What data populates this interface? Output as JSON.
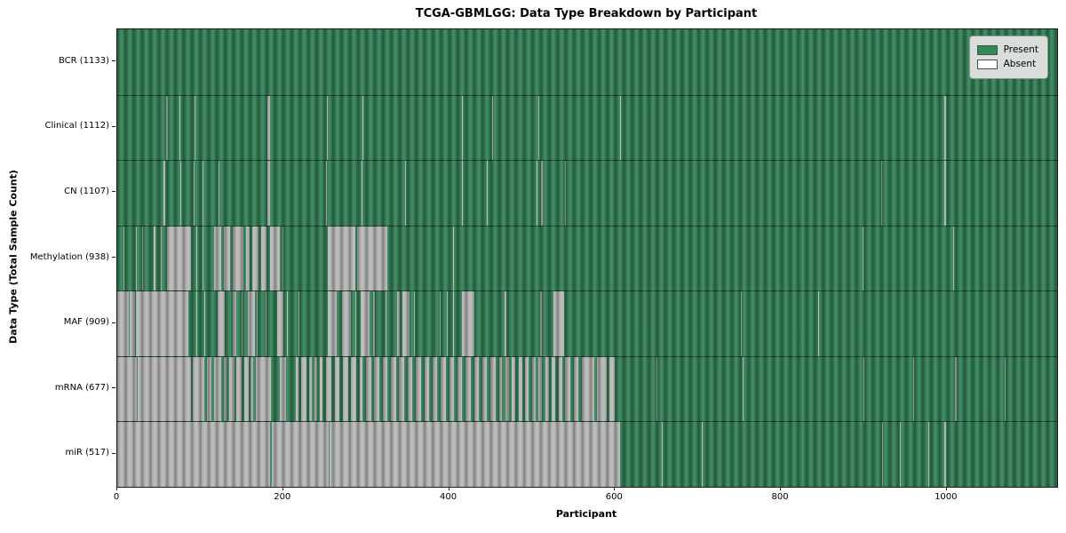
{
  "title": "TCGA-GBMLGG: Data Type Breakdown by Participant",
  "axes": {
    "xlabel": "Participant",
    "ylabel": "Data Type (Total Sample Count)"
  },
  "legend": {
    "items": [
      {
        "label": "Present",
        "color": "#2e8b57"
      },
      {
        "label": "Absent",
        "color": "#ffffff"
      }
    ]
  },
  "colors": {
    "present_fill": "#2e8b57",
    "absent_fill": "#ffffff",
    "bar_edge": "#1c1c1c",
    "plot_border": "#1a1a1a",
    "legend_bg": "#dadedb"
  },
  "chart_data": {
    "type": "heatmap",
    "title": "TCGA-GBMLGG: Data Type Breakdown by Participant",
    "xlabel": "Participant",
    "ylabel": "Data Type (Total Sample Count)",
    "x_range": [
      0,
      1133
    ],
    "x_ticks": [
      0,
      200,
      400,
      600,
      800,
      1000
    ],
    "legend": [
      "Present",
      "Absent"
    ],
    "legend_position": "upper right",
    "cell_states": {
      "present": "#2e8b57 green",
      "absent": "white with gray bar edges"
    },
    "n_participants": 1133,
    "rows": [
      {
        "label": "BCR (1133)",
        "data_type": "BCR",
        "total_samples": 1133,
        "absent_segments": []
      },
      {
        "label": "Clinical (1112)",
        "data_type": "Clinical",
        "total_samples": 1112,
        "absent_segments": [
          [
            59,
            61
          ],
          [
            75,
            76
          ],
          [
            93,
            94
          ],
          [
            181,
            184
          ],
          [
            253,
            254
          ],
          [
            296,
            297
          ],
          [
            415,
            416
          ],
          [
            452,
            453
          ],
          [
            508,
            509
          ],
          [
            606,
            607
          ],
          [
            997,
            999
          ]
        ]
      },
      {
        "label": "CN (1107)",
        "data_type": "CN",
        "total_samples": 1107,
        "absent_segments": [
          [
            56,
            58
          ],
          [
            76,
            77
          ],
          [
            92,
            93
          ],
          [
            103,
            104
          ],
          [
            122,
            123
          ],
          [
            181,
            184
          ],
          [
            252,
            253
          ],
          [
            295,
            296
          ],
          [
            347,
            348
          ],
          [
            416,
            417
          ],
          [
            445,
            446
          ],
          [
            505,
            506
          ],
          [
            511,
            513
          ],
          [
            540,
            541
          ],
          [
            921,
            922
          ],
          [
            997,
            999
          ]
        ]
      },
      {
        "label": "Methylation (938)",
        "data_type": "Methylation",
        "total_samples": 938,
        "absent_segments": [
          [
            8,
            9
          ],
          [
            22,
            23
          ],
          [
            30,
            31
          ],
          [
            44,
            46
          ],
          [
            52,
            53
          ],
          [
            60,
            89
          ],
          [
            95,
            96
          ],
          [
            103,
            104
          ],
          [
            117,
            125
          ],
          [
            128,
            136
          ],
          [
            139,
            152
          ],
          [
            155,
            160
          ],
          [
            163,
            170
          ],
          [
            173,
            180
          ],
          [
            184,
            196
          ],
          [
            199,
            200
          ],
          [
            254,
            287
          ],
          [
            289,
            326
          ],
          [
            405,
            406
          ],
          [
            898,
            900
          ],
          [
            1008,
            1009
          ]
        ]
      },
      {
        "label": "MAF (909)",
        "data_type": "MAF",
        "total_samples": 909,
        "absent_segments": [
          [
            0,
            14
          ],
          [
            15,
            21
          ],
          [
            23,
            86
          ],
          [
            95,
            96
          ],
          [
            105,
            106
          ],
          [
            121,
            130
          ],
          [
            139,
            143
          ],
          [
            150,
            151
          ],
          [
            157,
            166
          ],
          [
            168,
            169
          ],
          [
            179,
            180
          ],
          [
            193,
            200
          ],
          [
            205,
            206
          ],
          [
            218,
            219
          ],
          [
            254,
            264
          ],
          [
            271,
            282
          ],
          [
            287,
            288
          ],
          [
            293,
            304
          ],
          [
            308,
            311
          ],
          [
            323,
            324
          ],
          [
            337,
            341
          ],
          [
            344,
            352
          ],
          [
            358,
            359
          ],
          [
            389,
            390
          ],
          [
            397,
            398
          ],
          [
            405,
            406
          ],
          [
            416,
            430
          ],
          [
            467,
            469
          ],
          [
            510,
            512
          ],
          [
            526,
            539
          ],
          [
            752,
            753
          ],
          [
            845,
            846
          ]
        ]
      },
      {
        "label": "mRNA (677)",
        "data_type": "mRNA",
        "total_samples": 677,
        "absent_segments": [
          [
            0,
            24
          ],
          [
            25,
            89
          ],
          [
            91,
            105
          ],
          [
            108,
            113
          ],
          [
            117,
            125
          ],
          [
            128,
            132
          ],
          [
            135,
            141
          ],
          [
            144,
            150
          ],
          [
            153,
            159
          ],
          [
            161,
            164
          ],
          [
            167,
            185
          ],
          [
            196,
            204
          ],
          [
            215,
            218
          ],
          [
            222,
            228
          ],
          [
            231,
            234
          ],
          [
            238,
            241
          ],
          [
            244,
            247
          ],
          [
            252,
            258
          ],
          [
            262,
            268
          ],
          [
            272,
            278
          ],
          [
            282,
            288
          ],
          [
            292,
            296
          ],
          [
            300,
            306
          ],
          [
            310,
            316
          ],
          [
            320,
            326
          ],
          [
            330,
            336
          ],
          [
            340,
            346
          ],
          [
            350,
            356
          ],
          [
            360,
            366
          ],
          [
            370,
            376
          ],
          [
            380,
            386
          ],
          [
            390,
            396
          ],
          [
            400,
            406
          ],
          [
            410,
            416
          ],
          [
            420,
            426
          ],
          [
            430,
            436
          ],
          [
            440,
            446
          ],
          [
            450,
            456
          ],
          [
            460,
            464
          ],
          [
            468,
            472
          ],
          [
            476,
            480
          ],
          [
            484,
            488
          ],
          [
            492,
            496
          ],
          [
            500,
            504
          ],
          [
            508,
            512
          ],
          [
            516,
            520
          ],
          [
            524,
            528
          ],
          [
            532,
            536
          ],
          [
            540,
            546
          ],
          [
            550,
            556
          ],
          [
            560,
            575
          ],
          [
            578,
            590
          ],
          [
            593,
            600
          ],
          [
            650,
            651
          ],
          [
            754,
            755
          ],
          [
            900,
            901
          ],
          [
            960,
            961
          ],
          [
            1010,
            1012
          ],
          [
            1070,
            1071
          ]
        ]
      },
      {
        "label": "miR (517)",
        "data_type": "miR",
        "total_samples": 517,
        "absent_segments": [
          [
            0,
            184
          ],
          [
            186,
            255
          ],
          [
            256,
            606
          ],
          [
            656,
            657
          ],
          [
            705,
            706
          ],
          [
            922,
            923
          ],
          [
            943,
            944
          ],
          [
            978,
            979
          ],
          [
            997,
            999
          ]
        ]
      }
    ]
  }
}
